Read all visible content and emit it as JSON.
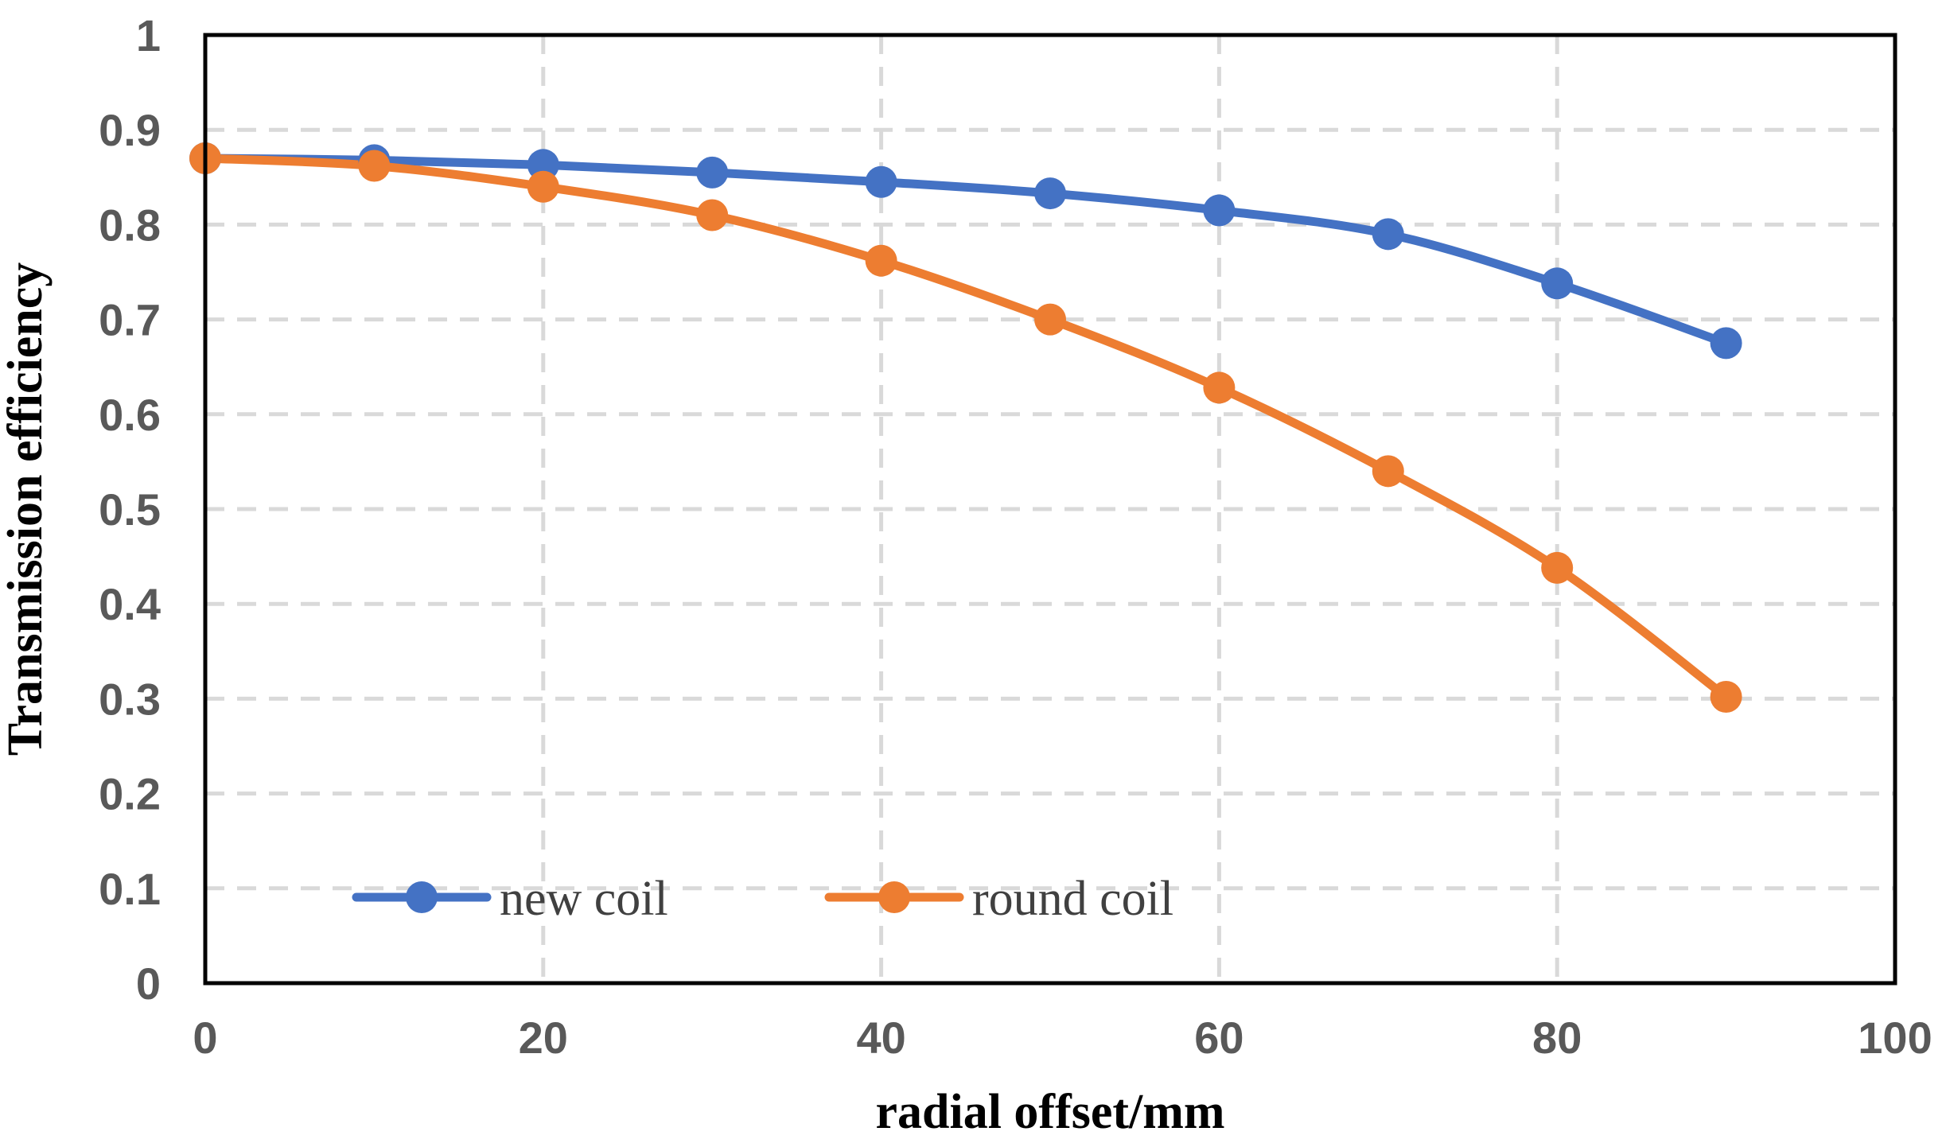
{
  "chart_data": {
    "type": "line",
    "title": "",
    "xlabel": "radial offset/mm",
    "ylabel": "Transmission efficiency",
    "xlim": [
      0,
      100
    ],
    "ylim": [
      0,
      1
    ],
    "x_ticks": [
      "0",
      "20",
      "40",
      "60",
      "80",
      "100"
    ],
    "y_ticks": [
      "0",
      "0.1",
      "0.2",
      "0.3",
      "0.4",
      "0.5",
      "0.6",
      "0.7",
      "0.8",
      "0.9",
      "1"
    ],
    "grid": true,
    "legend_position": "bottom-inside",
    "x": [
      0,
      10,
      20,
      30,
      40,
      50,
      60,
      70,
      80,
      90
    ],
    "series": [
      {
        "name": "new coil",
        "color": "#4472c4",
        "values": [
          0.87,
          0.868,
          0.863,
          0.855,
          0.845,
          0.833,
          0.815,
          0.79,
          0.738,
          0.675
        ]
      },
      {
        "name": "round coil",
        "color": "#ed7d31",
        "values": [
          0.87,
          0.862,
          0.84,
          0.81,
          0.762,
          0.7,
          0.628,
          0.54,
          0.438,
          0.302
        ]
      }
    ]
  }
}
